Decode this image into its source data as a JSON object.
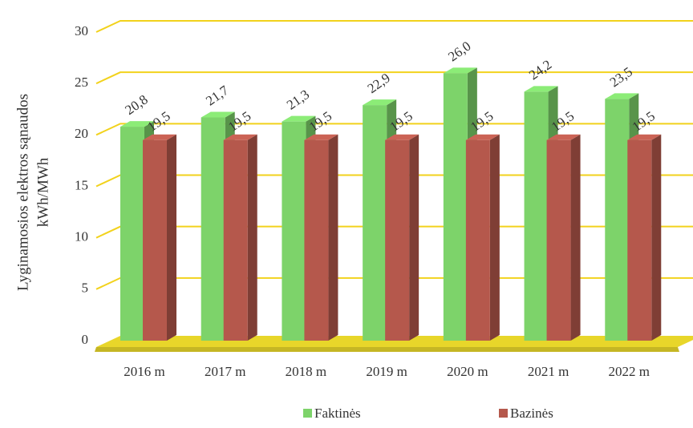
{
  "chart_data": {
    "type": "bar3d",
    "ylabel": [
      "Lyginamosios elektros sąnaudos",
      "kWh/MWh"
    ],
    "categories": [
      "2016 m",
      "2017 m",
      "2018 m",
      "2019 m",
      "2020 m",
      "2021 m",
      "2022 m"
    ],
    "series": [
      {
        "name": "Faktinės",
        "color": "#7dd36a",
        "values": [
          20.8,
          21.7,
          21.3,
          22.9,
          26.0,
          24.2,
          23.5
        ],
        "value_labels": [
          "20,8",
          "21,7",
          "21,3",
          "22,9",
          "26,0",
          "24,2",
          "23,5"
        ]
      },
      {
        "name": "Bazinės",
        "color": "#b5584c",
        "values": [
          19.5,
          19.5,
          19.5,
          19.5,
          19.5,
          19.5,
          19.5
        ],
        "value_labels": [
          "19,5",
          "19,5",
          "19,5",
          "19,5",
          "19,5",
          "19,5",
          "19,5"
        ]
      }
    ],
    "ylim": [
      0,
      30
    ],
    "yticks": [
      0,
      5,
      10,
      15,
      20,
      25,
      30
    ],
    "grid": true,
    "grid_color": "#f2d21c",
    "floor_color": "#e8d62a"
  }
}
